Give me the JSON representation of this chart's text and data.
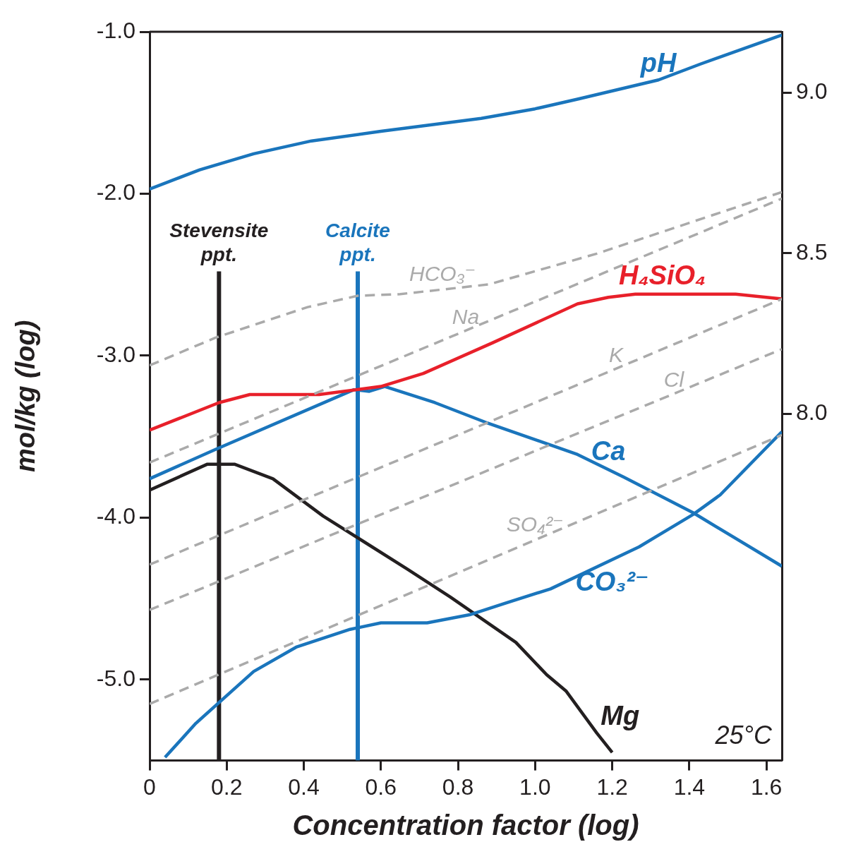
{
  "chart_data": {
    "type": "line",
    "xlabel": "Concentration factor (log)",
    "ylabel": "mol/kg (log)",
    "xlim": [
      0,
      1.64
    ],
    "xticks": [
      0,
      0.2,
      0.4,
      0.6,
      0.8,
      {
        "value": 1,
        "label": "1.0"
      },
      1.2,
      1.4,
      1.6
    ],
    "ylim": [
      -5.5,
      -1.0
    ],
    "yticks": [
      {
        "value": -1,
        "label": "-1.0"
      },
      {
        "value": -2,
        "label": "-2.0"
      },
      {
        "value": -3,
        "label": "-3.0"
      },
      {
        "value": -4,
        "label": "-4.0"
      },
      {
        "value": -5,
        "label": "-5.0"
      }
    ],
    "y2lim": [
      6.92,
      9.19
    ],
    "y2ticks": [
      {
        "value": 8,
        "label": "8.0"
      },
      8.5,
      {
        "value": 9,
        "label": "9.0"
      }
    ],
    "grid": false,
    "legend": false,
    "marker": "none",
    "annotations": [
      "25°C"
    ],
    "series": [
      {
        "name": "pH",
        "color": "#1a75bc",
        "axis": "y2",
        "x": [
          0,
          0.13,
          0.27,
          0.42,
          0.6,
          0.86,
          1.0,
          1.11,
          1.32,
          1.43,
          1.64
        ],
        "values": [
          8.7,
          8.76,
          8.81,
          8.85,
          8.88,
          8.92,
          8.95,
          8.98,
          9.04,
          9.09,
          9.18
        ]
      },
      {
        "name": "HCO₃⁻",
        "color": "#aaaaaa",
        "line_style": "dashed",
        "x": [
          0,
          0.17,
          0.41,
          0.54,
          0.65,
          0.88,
          1.16,
          1.64
        ],
        "values": [
          -3.06,
          -2.89,
          -2.7,
          -2.63,
          -2.62,
          -2.56,
          -2.37,
          -1.99
        ]
      },
      {
        "name": "Na",
        "color": "#aaaaaa",
        "line_style": "dashed",
        "x": [
          0,
          1.64
        ],
        "values": [
          -3.66,
          -2.03
        ]
      },
      {
        "name": "K",
        "color": "#aaaaaa",
        "line_style": "dashed",
        "x": [
          0,
          1.64
        ],
        "values": [
          -4.29,
          -2.65
        ]
      },
      {
        "name": "Cl",
        "color": "#aaaaaa",
        "line_style": "dashed",
        "x": [
          0,
          1.64
        ],
        "values": [
          -4.57,
          -2.96
        ]
      },
      {
        "name": "SO₄²⁻",
        "color": "#aaaaaa",
        "line_style": "dashed",
        "x": [
          0,
          1.64
        ],
        "values": [
          -5.15,
          -3.49
        ]
      },
      {
        "name": "H₄SiO₄",
        "color": "#e8202a",
        "x": [
          0,
          0.18,
          0.26,
          0.44,
          0.6,
          0.71,
          0.89,
          1.11,
          1.19,
          1.26,
          1.52,
          1.64
        ],
        "values": [
          -3.46,
          -3.29,
          -3.24,
          -3.24,
          -3.19,
          -3.11,
          -2.92,
          -2.68,
          -2.64,
          -2.62,
          -2.62,
          -2.65
        ]
      },
      {
        "name": "Ca",
        "color": "#1a75bc",
        "x": [
          0,
          0.17,
          0.53,
          0.57,
          0.61,
          0.74,
          0.87,
          1.11,
          1.23,
          1.41,
          1.64
        ],
        "values": [
          -3.76,
          -3.58,
          -3.21,
          -3.22,
          -3.19,
          -3.29,
          -3.41,
          -3.61,
          -3.75,
          -3.97,
          -4.3
        ]
      },
      {
        "name": "CO₃²⁻",
        "color": "#1a75bc",
        "x": [
          0.04,
          0.12,
          0.27,
          0.38,
          0.52,
          0.6,
          0.72,
          0.83,
          0.92,
          1.04,
          1.27,
          1.41,
          1.48,
          1.64
        ],
        "values": [
          -5.48,
          -5.27,
          -4.95,
          -4.8,
          -4.69,
          -4.65,
          -4.65,
          -4.6,
          -4.53,
          -4.44,
          -4.18,
          -3.98,
          -3.86,
          -3.47
        ]
      },
      {
        "name": "Mg",
        "color": "#231f20",
        "x": [
          0,
          0.15,
          0.22,
          0.32,
          0.45,
          0.55,
          0.67,
          0.78,
          0.95,
          1.03,
          1.08,
          1.16,
          1.2
        ],
        "values": [
          -3.83,
          -3.67,
          -3.67,
          -3.76,
          -3.99,
          -4.14,
          -4.32,
          -4.49,
          -4.77,
          -4.97,
          -5.07,
          -5.33,
          -5.45
        ]
      },
      {
        "name": "Stevensite ppt.",
        "color": "#231f20",
        "x": [
          0.18,
          0.18
        ],
        "values": [
          -5.5,
          -2.48
        ]
      },
      {
        "name": "Calcite ppt.",
        "color": "#1a75bc",
        "x": [
          0.54,
          0.54
        ],
        "values": [
          -5.5,
          -2.48
        ]
      }
    ]
  }
}
